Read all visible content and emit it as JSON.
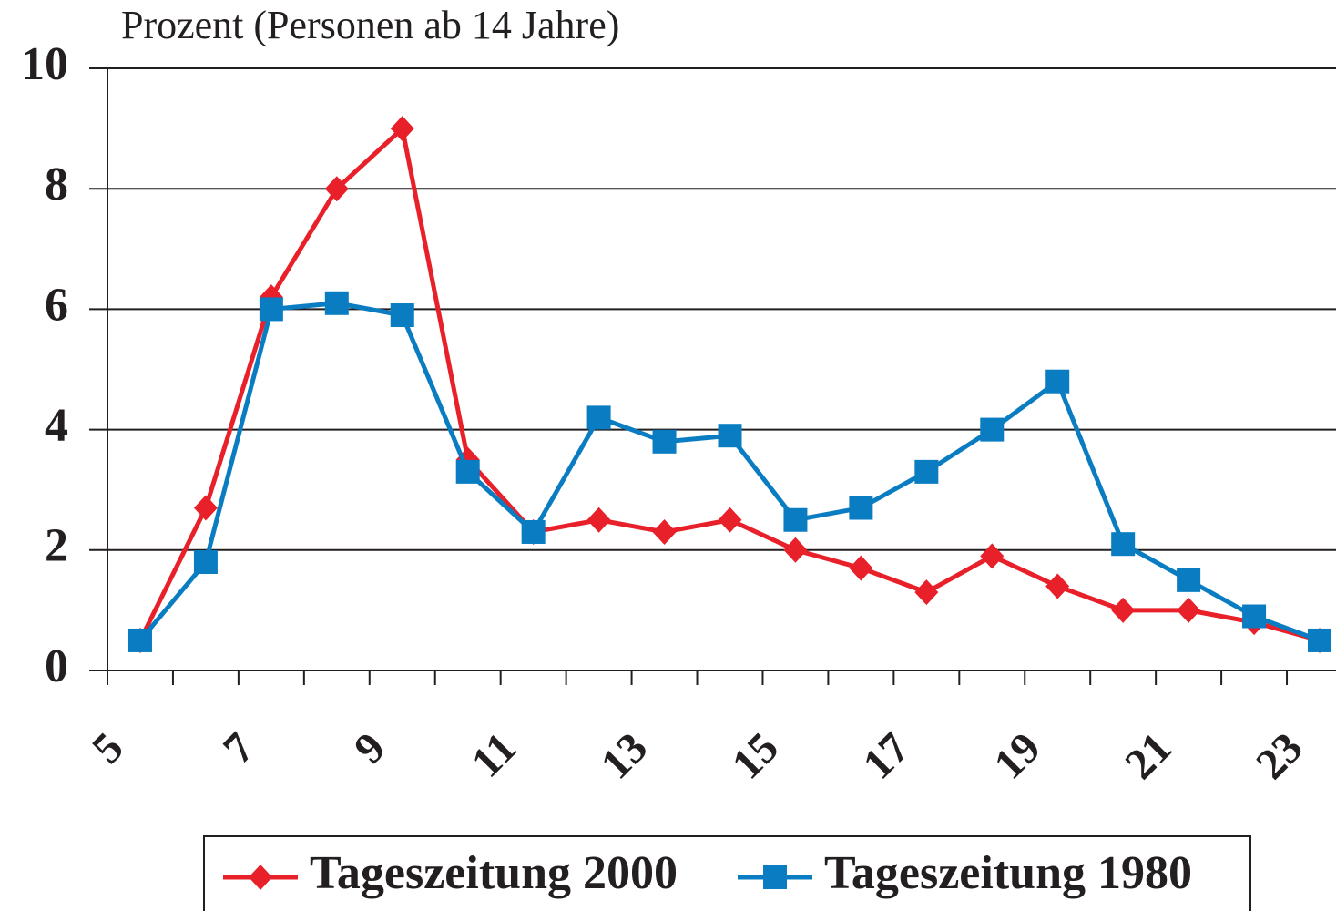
{
  "chart_data": {
    "type": "line",
    "title": "Prozent  (Personen ab 14 Jahre)",
    "x": [
      5.5,
      6.5,
      7.5,
      8.5,
      9.5,
      10.5,
      11.5,
      12.5,
      13.5,
      14.5,
      15.5,
      16.5,
      17.5,
      18.5,
      19.5,
      20.5,
      21.5,
      22.5,
      23.5
    ],
    "series": [
      {
        "name": "Tageszeitung 2000",
        "color": "#e8202a",
        "marker": "diamond",
        "values": [
          0.5,
          2.7,
          6.2,
          8.0,
          9.0,
          3.5,
          2.3,
          2.5,
          2.3,
          2.5,
          2.0,
          1.7,
          1.3,
          1.9,
          1.4,
          1.0,
          1.0,
          0.8,
          0.5
        ]
      },
      {
        "name": "Tageszeitung 1980",
        "color": "#0a7dc2",
        "marker": "square",
        "values": [
          0.5,
          1.8,
          6.0,
          6.1,
          5.9,
          3.3,
          2.3,
          4.2,
          3.8,
          3.9,
          2.5,
          2.7,
          3.3,
          4.0,
          4.8,
          2.1,
          1.5,
          0.9,
          0.5
        ]
      }
    ],
    "xlim": [
      5,
      23.75
    ],
    "xticks": [
      5,
      7,
      9,
      11,
      13,
      15,
      17,
      19,
      21,
      23
    ],
    "xminorticks": [
      6,
      8,
      10,
      12,
      14,
      16,
      18,
      20,
      22
    ],
    "ylim": [
      0,
      10
    ],
    "yticks": [
      0,
      2,
      4,
      6,
      8,
      10
    ],
    "grid": true,
    "legend": "bottom"
  }
}
